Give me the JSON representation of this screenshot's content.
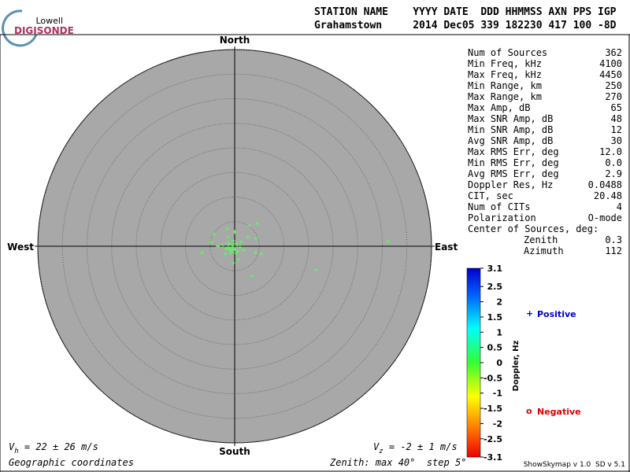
{
  "logo": {
    "top": "Lowell",
    "bottom": "DIGISONDE"
  },
  "header": {
    "labels": "STATION NAME    YYYY DATE  DDD HHMMSS AXN PPS IGP",
    "values": "Grahamstown     2014 Dec05 339 182230 417 100 -8D"
  },
  "stats": {
    "rows": [
      [
        "Num of Sources",
        "362"
      ],
      [
        "Min Freq, kHz",
        "4100"
      ],
      [
        "Max Freq, kHz",
        "4450"
      ],
      [
        "Min Range, km",
        "250"
      ],
      [
        "Max Range, km",
        "270"
      ],
      [
        "Max Amp, dB",
        "65"
      ],
      [
        "Max SNR Amp, dB",
        "48"
      ],
      [
        "Min SNR Amp, dB",
        "12"
      ],
      [
        "Avg SNR Amp, dB",
        "30"
      ],
      [
        "Max RMS Err, deg",
        "12.0"
      ],
      [
        "Min RMS Err, deg",
        "0.0"
      ],
      [
        "Avg RMS Err, deg",
        "2.9"
      ],
      [
        "Doppler Res, Hz",
        "0.0488"
      ],
      [
        "CIT, sec",
        "20.48"
      ],
      [
        "Num of CITs",
        "4"
      ],
      [
        "Polarization",
        "O-mode"
      ]
    ],
    "center_label": "Center of Sources, deg:",
    "center_rows": [
      [
        "Zenith",
        "0.3"
      ],
      [
        "Azimuth",
        "112"
      ]
    ]
  },
  "chart_data": {
    "type": "scatter",
    "directions": {
      "north": "North",
      "south": "South",
      "east": "East",
      "west": "West"
    },
    "rlim": [
      0,
      40
    ],
    "rticks": [
      5,
      10,
      15,
      20,
      25,
      30,
      35,
      40
    ],
    "series": [
      {
        "color": "#55ff55",
        "marker": "+",
        "x": [
          31.2,
          16.5,
          3.5,
          4.6,
          3.0,
          2.7,
          4.3,
          5.4,
          4.2,
          -6.6,
          -4.8,
          -4.2,
          -1.6,
          -1.3,
          0,
          -0.3,
          -1.9,
          -3.4,
          0.8,
          1.8,
          -1.0,
          -0.5,
          0,
          0.5,
          -0.6,
          -1.3,
          0.2,
          -0.3,
          0.6,
          -1.8,
          1.1,
          -0.8,
          0.3,
          -1.4,
          1.3,
          -2.4,
          -0.3,
          -1.1
        ],
        "y": [
          1.0,
          -4.8,
          -6.1,
          4.6,
          4.2,
          1.9,
          1.6,
          -1.6,
          -1.3,
          -1.3,
          0.8,
          2.4,
          3.5,
          1.8,
          2.9,
          -3.4,
          -1.6,
          0,
          -2.7,
          -0.8,
          0.5,
          -0.2,
          -0.6,
          0.2,
          -0.8,
          -0.2,
          0.6,
          1.1,
          -1.0,
          -0.5,
          -0.2,
          -1.3,
          -1.4,
          0.6,
          0.8,
          0.2,
          0.2,
          -0.6
        ]
      }
    ],
    "colorbar": {
      "label": "Doppler, Hz",
      "lim": [
        -3.1,
        3.1
      ],
      "ticks": [
        3.1,
        2.5,
        2,
        1.5,
        1,
        0.5,
        0,
        -0.5,
        -1,
        -1.5,
        -2,
        -2.5,
        -3.1
      ]
    },
    "legend": {
      "positive": {
        "marker": "+",
        "text": "Positive",
        "color": "#0000cc"
      },
      "negative": {
        "marker": "o",
        "text": "Negative",
        "color": "#dd0000"
      }
    },
    "vh": {
      "symbol": "V",
      "sub": "h",
      "text": " = 22 ± 26 m/s"
    },
    "vz": {
      "symbol": "V",
      "sub": "z",
      "text": " = -2 ± 1 m/s"
    },
    "coords": "Geographic coordinates",
    "zenith_note": "Zenith: max 40°  step 5°"
  },
  "footer": "ShowSkymap v 1.0  SD v 5.1"
}
